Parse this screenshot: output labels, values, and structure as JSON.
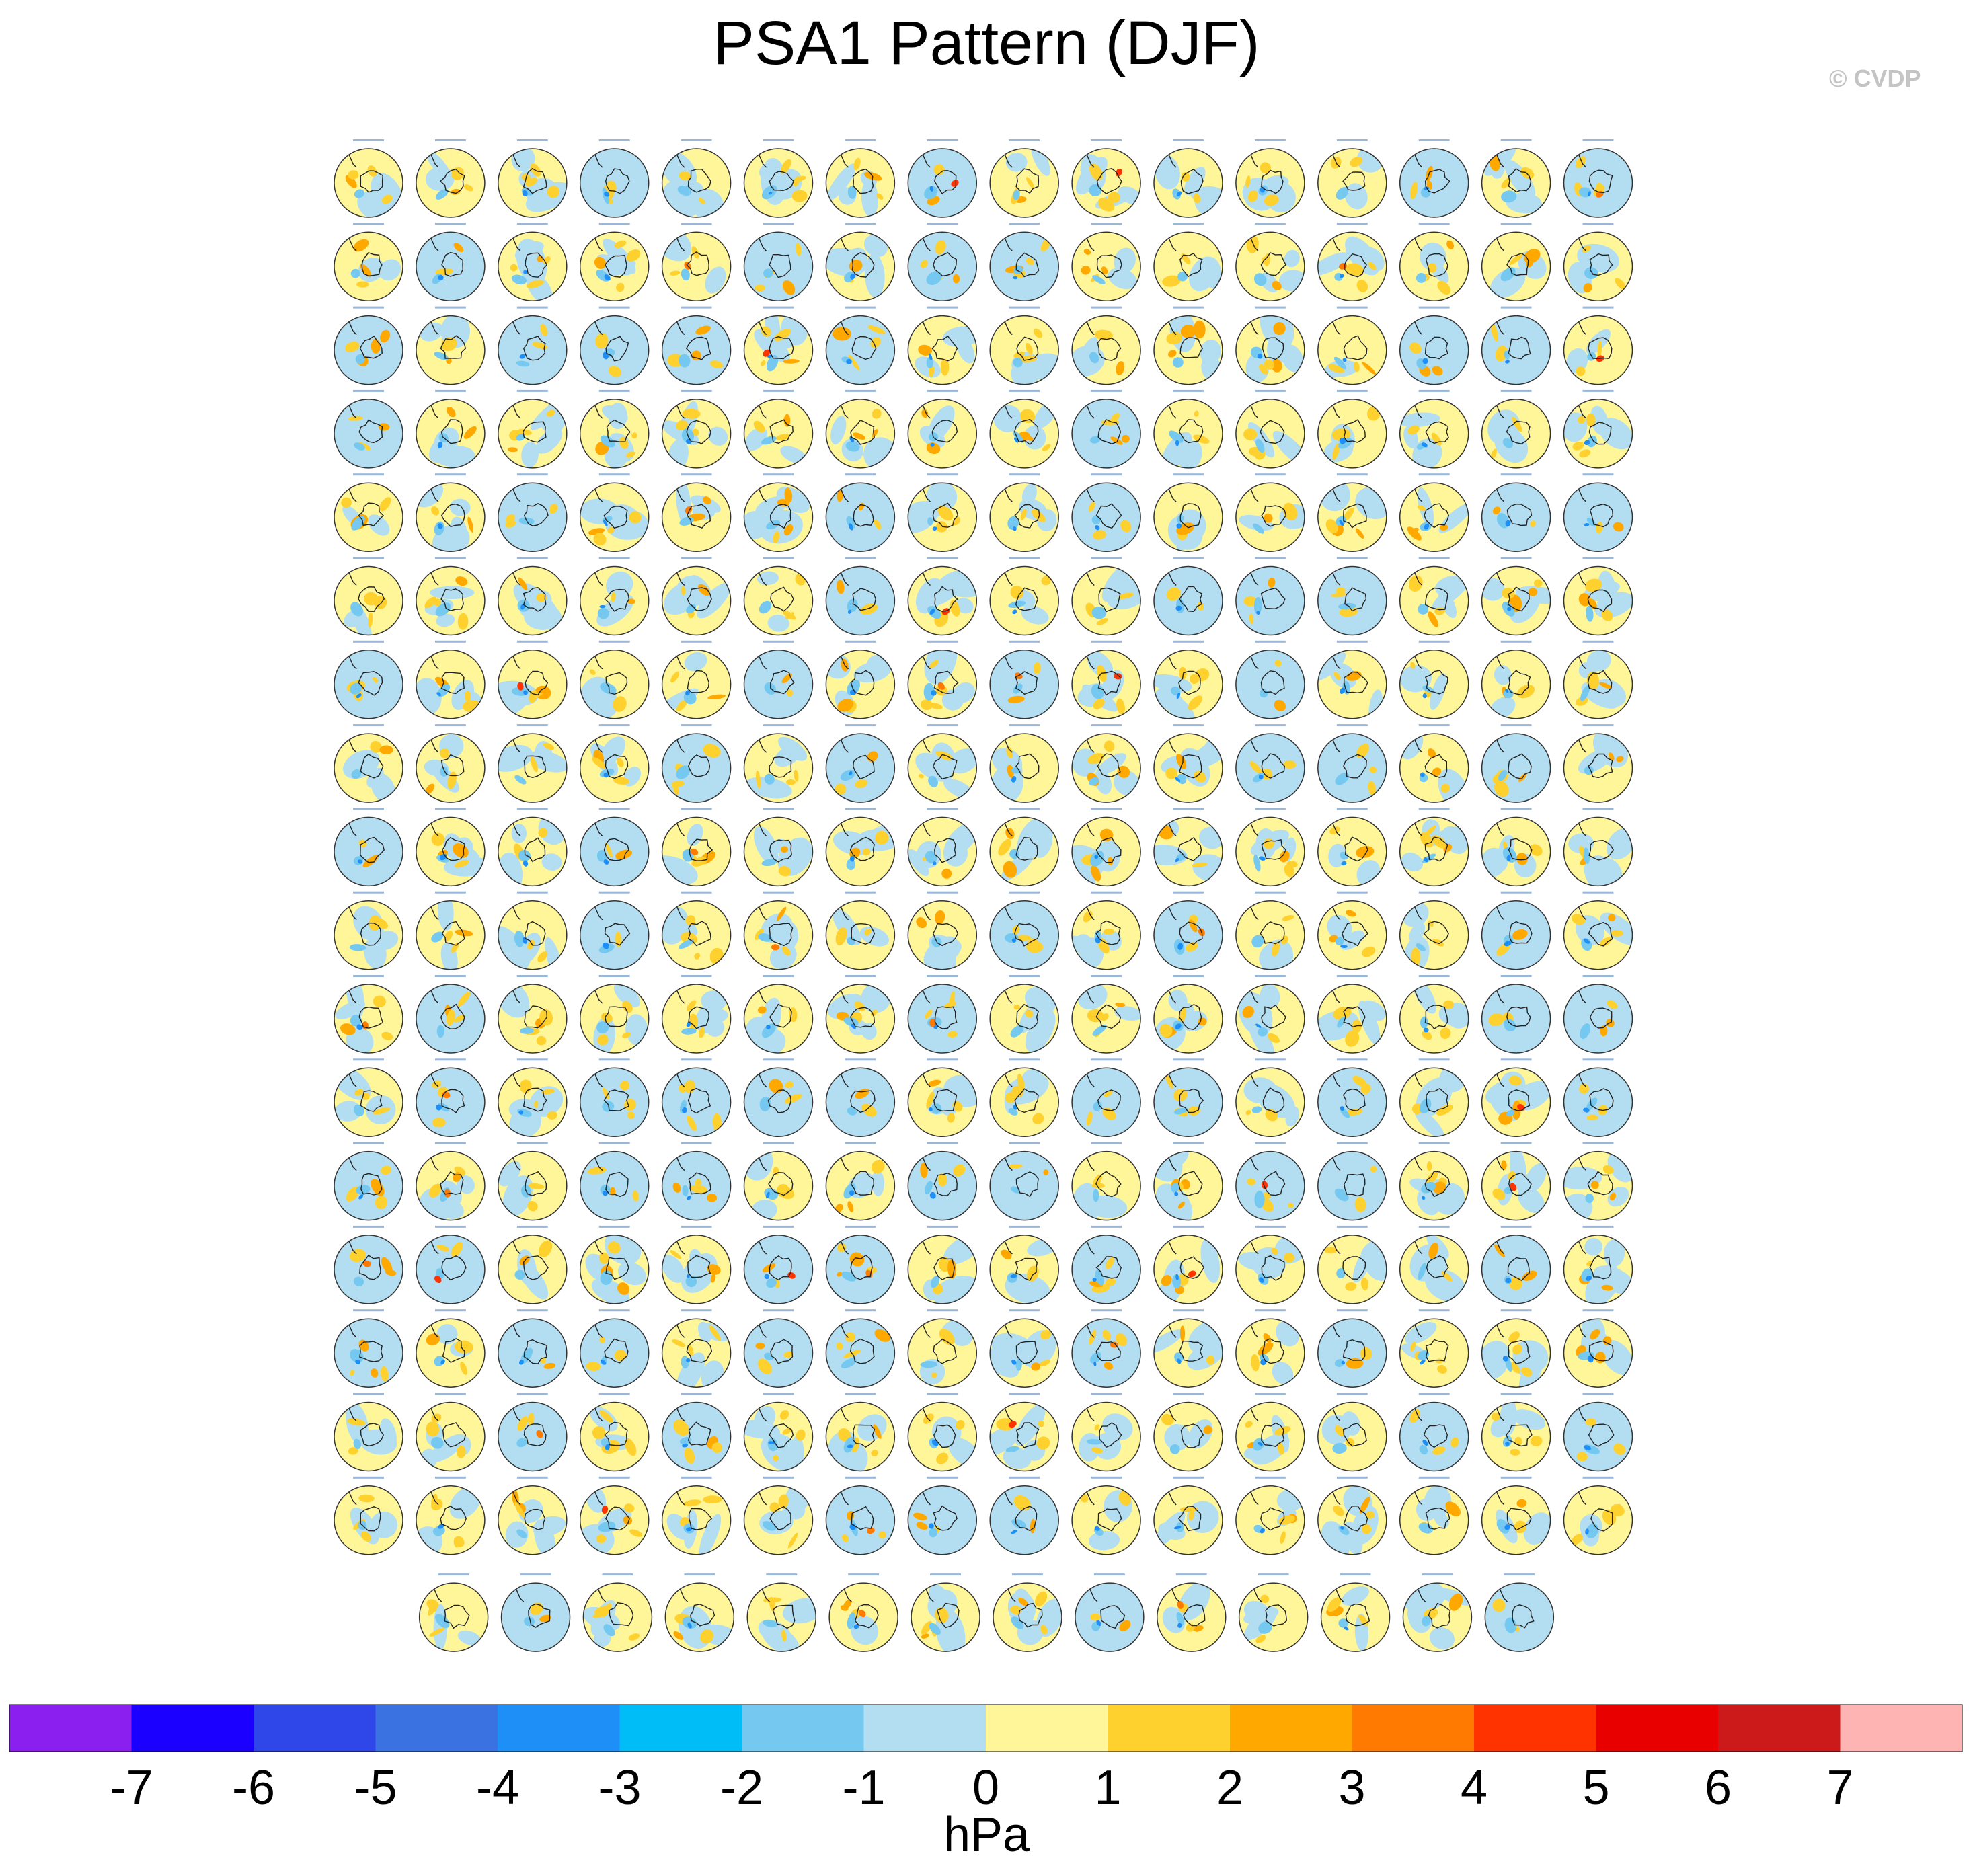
{
  "title": "PSA1 Pattern (DJF)",
  "watermark": "© CVDP",
  "chart_data": {
    "type": "heatmap",
    "title": "PSA1 Pattern (DJF)",
    "panel_count": 286,
    "grid_rows": 18,
    "grid_full_row_columns": 16,
    "last_row_columns": 14,
    "map_projection": "south polar stereographic",
    "colorbar": {
      "units": "hPa",
      "ticks": [
        -7,
        -6,
        -5,
        -4,
        -3,
        -2,
        -1,
        0,
        1,
        2,
        3,
        4,
        5,
        6,
        7
      ],
      "tick_labels": [
        "-7",
        "-6",
        "-5",
        "-4",
        "-3",
        "-2",
        "-1",
        "0",
        "1",
        "2",
        "3",
        "4",
        "5",
        "6",
        "7"
      ],
      "colors": [
        "#8a1ff0",
        "#1c00ff",
        "#2f46e8",
        "#3a72e2",
        "#1e8ff7",
        "#00bdf8",
        "#75c9f0",
        "#b3def2",
        "#fff69a",
        "#ffd12e",
        "#ffa900",
        "#ff7a00",
        "#ff3300",
        "#e80000",
        "#cc1a1a",
        "#ffb4b4"
      ]
    }
  }
}
